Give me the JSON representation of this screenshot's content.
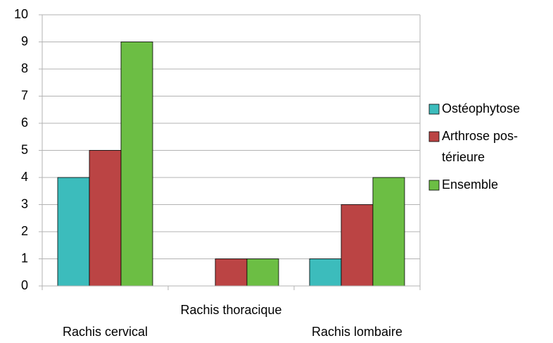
{
  "chart_data": {
    "type": "bar",
    "categories": [
      "Rachis cervical",
      "Rachis thoracique",
      "Rachis lombaire"
    ],
    "series": [
      {
        "name": "Ostéophytose",
        "color": "#3cbcbc",
        "values": [
          4,
          0,
          1
        ]
      },
      {
        "name": "Arthrose pos-térieure",
        "color": "#bb4444",
        "values": [
          5,
          1,
          3
        ]
      },
      {
        "name": "Ensemble",
        "color": "#6cbe44",
        "values": [
          9,
          1,
          4
        ]
      }
    ],
    "ylim": [
      0,
      10
    ],
    "yticks": [
      0,
      1,
      2,
      3,
      4,
      5,
      6,
      7,
      8,
      9,
      10
    ],
    "grid": true,
    "legend": "right"
  }
}
